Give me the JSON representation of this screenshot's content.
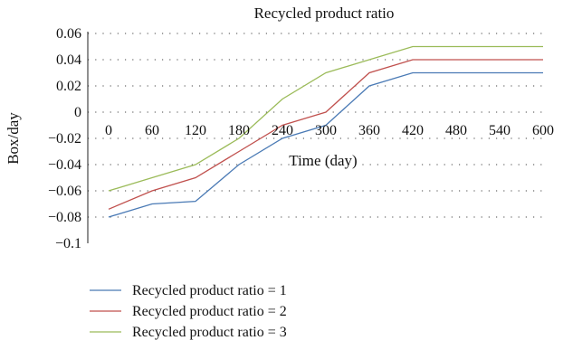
{
  "chart_data": {
    "type": "line",
    "title": "Recycled product ratio",
    "xlabel": "Time (day)",
    "ylabel": "Box/day",
    "x": [
      0,
      60,
      120,
      180,
      240,
      300,
      360,
      420,
      480,
      540,
      600
    ],
    "xlim": [
      0,
      600
    ],
    "ylim": [
      -0.1,
      0.06
    ],
    "x_ticks": [
      "0",
      "60",
      "120",
      "180",
      "240",
      "300",
      "360",
      "420",
      "480",
      "540",
      "600"
    ],
    "y_ticks": [
      {
        "value": 0.06,
        "label": "0.06"
      },
      {
        "value": 0.04,
        "label": "0.04"
      },
      {
        "value": 0.02,
        "label": "0.02"
      },
      {
        "value": 0,
        "label": "0"
      },
      {
        "value": -0.02,
        "label": "−0.02"
      },
      {
        "value": -0.04,
        "label": "−0.04"
      },
      {
        "value": -0.06,
        "label": "−0.06"
      },
      {
        "value": -0.08,
        "label": "−0.08"
      },
      {
        "value": -0.1,
        "label": "−0.1"
      }
    ],
    "grid": true,
    "legend_position": "bottom-left",
    "series": [
      {
        "name": "Recycled product ratio = 1",
        "color": "#4a7ab5",
        "points": [
          [
            0,
            -0.08
          ],
          [
            60,
            -0.07
          ],
          [
            120,
            -0.068
          ],
          [
            180,
            -0.04
          ],
          [
            240,
            -0.02
          ],
          [
            300,
            -0.01
          ],
          [
            360,
            0.02
          ],
          [
            420,
            0.03
          ],
          [
            600,
            0.03
          ]
        ]
      },
      {
        "name": "Recycled product ratio = 2",
        "color": "#c0504d",
        "points": [
          [
            0,
            -0.074
          ],
          [
            60,
            -0.06
          ],
          [
            120,
            -0.05
          ],
          [
            180,
            -0.03
          ],
          [
            240,
            -0.01
          ],
          [
            300,
            0
          ],
          [
            360,
            0.03
          ],
          [
            420,
            0.04
          ],
          [
            600,
            0.04
          ]
        ]
      },
      {
        "name": "Recycled product ratio = 3",
        "color": "#9bbb59",
        "points": [
          [
            0,
            -0.06
          ],
          [
            60,
            -0.05
          ],
          [
            120,
            -0.04
          ],
          [
            180,
            -0.02
          ],
          [
            240,
            0.01
          ],
          [
            300,
            0.03
          ],
          [
            360,
            0.04
          ],
          [
            420,
            0.05
          ],
          [
            600,
            0.05
          ]
        ]
      }
    ]
  }
}
